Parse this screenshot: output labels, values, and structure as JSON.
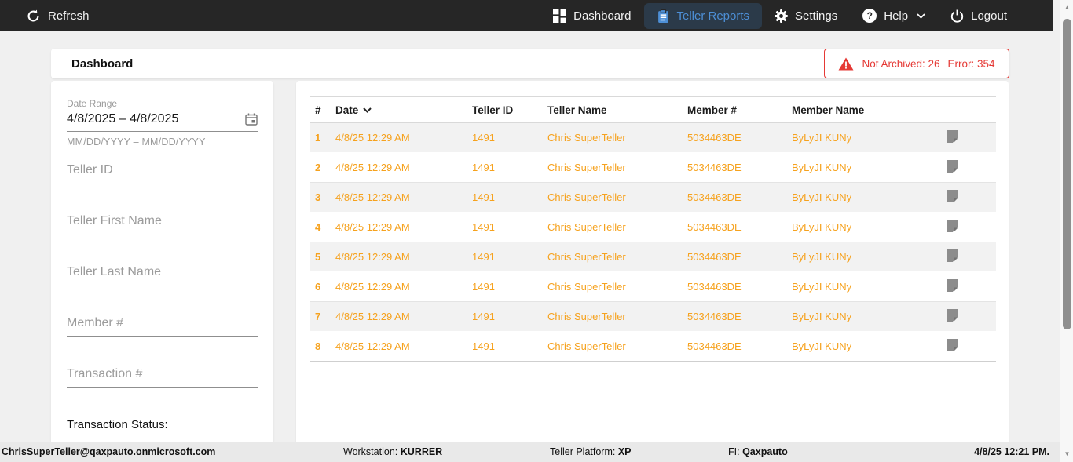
{
  "colors": {
    "accent_orange": "#f6a21e",
    "alert_red": "#e53935",
    "nav_active_blue": "#4d8fd6",
    "nav_bg": "#262626"
  },
  "nav": {
    "refresh_label": "Refresh",
    "items": [
      {
        "label": "Dashboard",
        "icon": "dashboard-grid-icon",
        "active": false
      },
      {
        "label": "Teller Reports",
        "icon": "clipboard-icon",
        "active": true
      },
      {
        "label": "Settings",
        "icon": "gear-icon",
        "active": false
      },
      {
        "label": "Help",
        "icon": "help-icon",
        "active": false,
        "has_chevron": true
      },
      {
        "label": "Logout",
        "icon": "power-icon",
        "active": false
      }
    ]
  },
  "header": {
    "title": "Dashboard",
    "alert": {
      "not_archived": "Not Archived: 26",
      "error": "Error: 354"
    }
  },
  "filters": {
    "date_range": {
      "label": "Date Range",
      "value": "4/8/2025 – 4/8/2025",
      "hint": "MM/DD/YYYY – MM/DD/YYYY",
      "icon": "calendar-icon"
    },
    "fields": [
      {
        "placeholder": "Teller ID"
      },
      {
        "placeholder": "Teller First Name"
      },
      {
        "placeholder": "Teller Last Name"
      },
      {
        "placeholder": "Member #"
      },
      {
        "placeholder": "Transaction #"
      }
    ],
    "transaction_status_label": "Transaction Status:"
  },
  "table": {
    "columns": [
      "#",
      "Date",
      "Teller ID",
      "Teller Name",
      "Member #",
      "Member Name"
    ],
    "sorted_column": "Date",
    "sort_direction": "desc",
    "rows": [
      {
        "num": "1",
        "date": "4/8/25 12:29 AM",
        "teller_id": "1491",
        "teller_name": "Chris SuperTeller",
        "member_num": "5034463DE",
        "member_name": "ByLyJI KUNy"
      },
      {
        "num": "2",
        "date": "4/8/25 12:29 AM",
        "teller_id": "1491",
        "teller_name": "Chris SuperTeller",
        "member_num": "5034463DE",
        "member_name": "ByLyJI KUNy"
      },
      {
        "num": "3",
        "date": "4/8/25 12:29 AM",
        "teller_id": "1491",
        "teller_name": "Chris SuperTeller",
        "member_num": "5034463DE",
        "member_name": "ByLyJI KUNy"
      },
      {
        "num": "4",
        "date": "4/8/25 12:29 AM",
        "teller_id": "1491",
        "teller_name": "Chris SuperTeller",
        "member_num": "5034463DE",
        "member_name": "ByLyJI KUNy"
      },
      {
        "num": "5",
        "date": "4/8/25 12:29 AM",
        "teller_id": "1491",
        "teller_name": "Chris SuperTeller",
        "member_num": "5034463DE",
        "member_name": "ByLyJI KUNy"
      },
      {
        "num": "6",
        "date": "4/8/25 12:29 AM",
        "teller_id": "1491",
        "teller_name": "Chris SuperTeller",
        "member_num": "5034463DE",
        "member_name": "ByLyJI KUNy"
      },
      {
        "num": "7",
        "date": "4/8/25 12:29 AM",
        "teller_id": "1491",
        "teller_name": "Chris SuperTeller",
        "member_num": "5034463DE",
        "member_name": "ByLyJI KUNy"
      },
      {
        "num": "8",
        "date": "4/8/25 12:29 AM",
        "teller_id": "1491",
        "teller_name": "Chris SuperTeller",
        "member_num": "5034463DE",
        "member_name": "ByLyJI KUNy"
      }
    ]
  },
  "status_bar": {
    "user": "ChrisSuperTeller@qaxpauto.onmicrosoft.com",
    "workstation_label": "Workstation:",
    "workstation": "KURRER",
    "platform_label": "Teller Platform:",
    "platform": "XP",
    "fi_label": "FI:",
    "fi": "Qaxpauto",
    "datetime": "4/8/25 12:21 PM."
  }
}
